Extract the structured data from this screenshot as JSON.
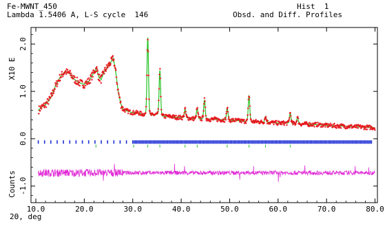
{
  "header": {
    "line1_left": "Fe-MWNT_450",
    "line2_left": "Lambda 1.5406 A, L-S cycle  146",
    "line1_right": "Hist  1",
    "line2_right": "Obsd. and Diff. Profiles"
  },
  "chart_data": {
    "type": "scatter",
    "xlabel": "2Θ, deg",
    "ylabel_top": "X10 E",
    "ylabel_bottom": "Counts",
    "xlim": [
      9.0,
      80.5
    ],
    "ylim": [
      -1.35,
      2.35
    ],
    "x_ticks": [
      "10.0",
      "20.0",
      "30.0",
      "40.0",
      "50.0",
      "60.0",
      "70.0",
      "80.0"
    ],
    "y_ticks": [
      "-1.0",
      "0.0",
      "1.0",
      "2.0"
    ],
    "x_tick_values": [
      10,
      20,
      30,
      40,
      50,
      60,
      70,
      80
    ],
    "y_tick_values": [
      -1.0,
      0.0,
      1.0,
      2.0
    ],
    "bragg_level": -0.07,
    "difference_offset": -0.72,
    "colors": {
      "observed": "#e8141c",
      "calculated": "#1fc31f",
      "difference": "#e02ad6",
      "bragg_markers": "#1f2fd6",
      "axis": "#000000"
    },
    "series": [
      {
        "role": "observed",
        "style": "red crosses"
      },
      {
        "role": "calculated",
        "style": "green line"
      },
      {
        "role": "difference",
        "style": "magenta line"
      },
      {
        "role": "bragg_markers",
        "style": "blue ticks"
      }
    ],
    "profile_x": [
      10.5,
      11,
      12,
      13,
      14,
      15,
      16,
      17,
      18,
      19,
      20,
      21,
      22,
      22.5,
      23,
      23.5,
      24,
      25,
      25.5,
      26,
      26.5,
      27,
      27.5,
      28,
      29,
      30,
      31,
      32,
      33,
      34,
      35,
      36,
      37,
      38,
      39,
      40,
      41,
      42,
      43,
      44,
      45,
      46,
      47,
      48,
      49,
      50,
      51,
      52,
      53,
      54,
      55,
      56,
      57,
      58,
      59,
      60,
      61,
      62,
      63,
      64,
      65,
      66,
      67,
      68,
      69,
      70,
      71,
      72,
      73,
      74,
      75,
      76,
      77,
      78,
      79,
      80
    ],
    "profile_y": [
      0.6,
      0.65,
      0.72,
      0.85,
      1.1,
      1.3,
      1.42,
      1.38,
      1.25,
      1.18,
      1.15,
      1.22,
      1.4,
      1.5,
      1.3,
      1.25,
      1.4,
      1.55,
      1.62,
      1.7,
      1.4,
      1.0,
      0.75,
      0.62,
      0.58,
      0.55,
      0.55,
      0.52,
      0.52,
      0.5,
      0.52,
      0.48,
      0.47,
      0.47,
      0.45,
      0.45,
      0.44,
      0.43,
      0.42,
      0.42,
      0.42,
      0.41,
      0.41,
      0.4,
      0.4,
      0.39,
      0.39,
      0.38,
      0.37,
      0.37,
      0.36,
      0.36,
      0.35,
      0.35,
      0.34,
      0.33,
      0.33,
      0.33,
      0.32,
      0.32,
      0.31,
      0.31,
      0.3,
      0.3,
      0.29,
      0.28,
      0.28,
      0.27,
      0.27,
      0.26,
      0.26,
      0.25,
      0.25,
      0.24,
      0.24,
      0.23
    ],
    "sharp_peaks": [
      {
        "x": 33.1,
        "height": 1.62
      },
      {
        "x": 35.6,
        "height": 0.95
      },
      {
        "x": 40.8,
        "height": 0.18
      },
      {
        "x": 43.3,
        "height": 0.22
      },
      {
        "x": 44.8,
        "height": 0.4
      },
      {
        "x": 49.5,
        "height": 0.25
      },
      {
        "x": 54.0,
        "height": 0.55
      },
      {
        "x": 57.4,
        "height": 0.12
      },
      {
        "x": 62.5,
        "height": 0.22
      },
      {
        "x": 64.0,
        "height": 0.13
      }
    ]
  }
}
